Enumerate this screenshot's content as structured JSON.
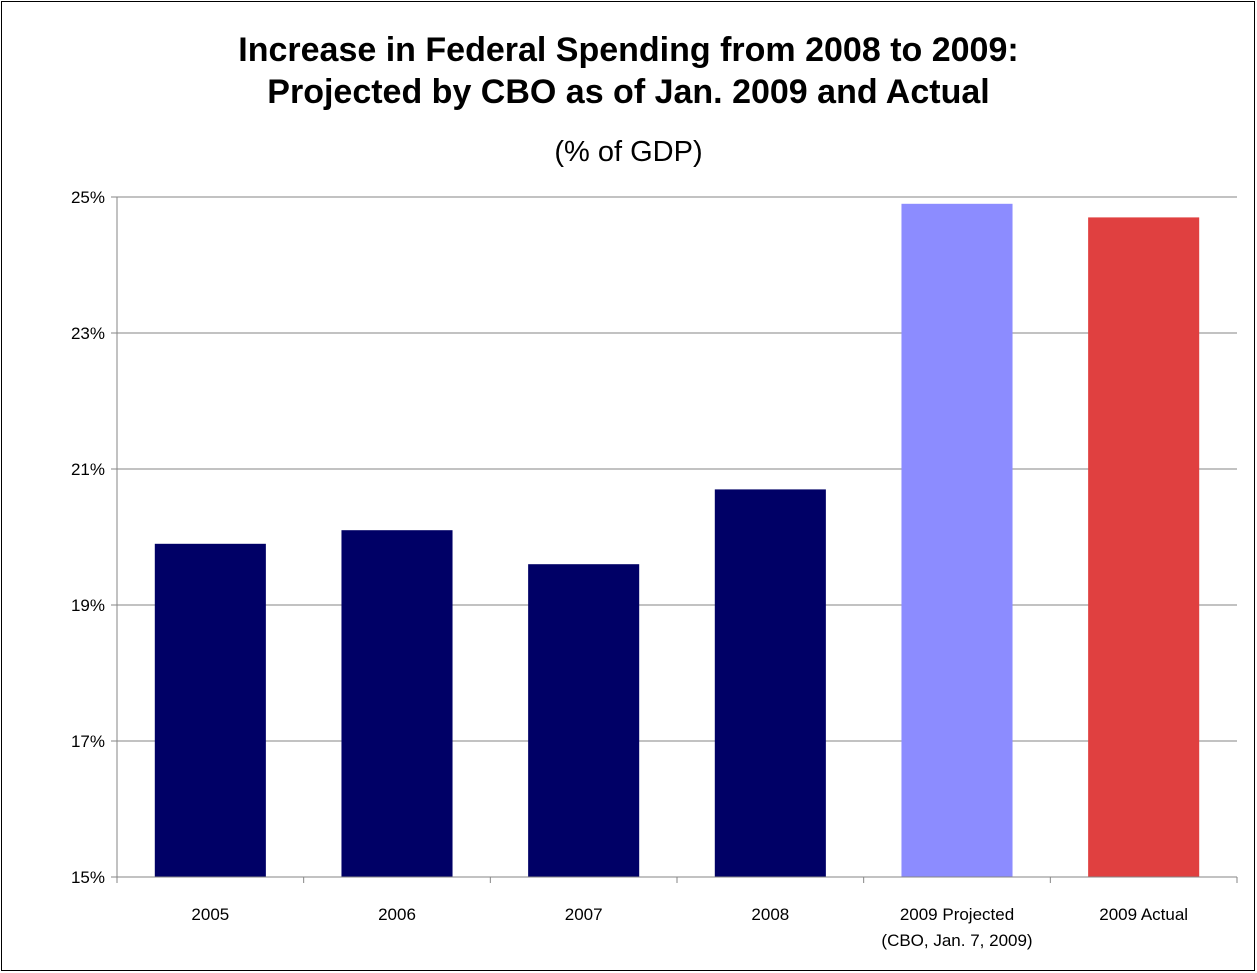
{
  "chart_data": {
    "type": "bar",
    "title_line1": "Increase in Federal Spending from 2008 to 2009:",
    "title_line2": "Projected by CBO as of Jan. 2009 and Actual",
    "subtitle": "(% of GDP)",
    "categories": [
      [
        "2005"
      ],
      [
        "2006"
      ],
      [
        "2007"
      ],
      [
        "2008"
      ],
      [
        "2009 Projected",
        "(CBO, Jan. 7, 2009)"
      ],
      [
        "2009 Actual"
      ]
    ],
    "values": [
      19.9,
      20.1,
      19.6,
      20.7,
      24.9,
      24.7
    ],
    "bar_colors": [
      "#000066",
      "#000066",
      "#000066",
      "#000066",
      "#8c8cff",
      "#e04040"
    ],
    "ylim": [
      15,
      25
    ],
    "yticks": [
      15,
      17,
      19,
      21,
      23,
      25
    ],
    "ytick_labels": [
      "15%",
      "17%",
      "19%",
      "21%",
      "23%",
      "25%"
    ],
    "grid": true,
    "xlabel": "",
    "ylabel": ""
  }
}
